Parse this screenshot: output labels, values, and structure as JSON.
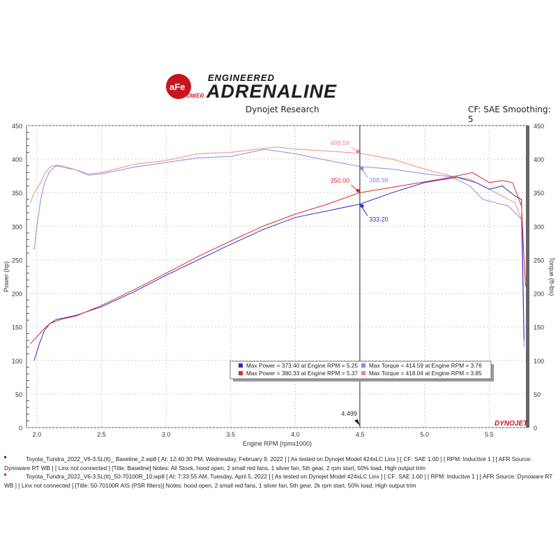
{
  "header": {
    "logo_brand": "aFe POWER",
    "logo_tagline_top": "ENGINEERED",
    "logo_tagline_main": "ADRENALINE",
    "title": "Dynojet Research",
    "settings": "CF: SAE Smoothing: 5"
  },
  "chart_data": {
    "type": "line",
    "title": "Dynojet Research",
    "xlabel": "Engine RPM (rpmx1000)",
    "ylabel": "Power (hp)",
    "y2label": "Torque (ft-lbs)",
    "xlim": [
      1.92,
      5.8
    ],
    "ylim": [
      0,
      450
    ],
    "y2lim": [
      0,
      450
    ],
    "x_ticks": [
      "2.0",
      "2.5",
      "3.0",
      "3.5",
      "4.0",
      "4.5",
      "5.0",
      "5.5"
    ],
    "y_ticks": [
      "0",
      "50",
      "100",
      "150",
      "200",
      "250",
      "300",
      "350",
      "400",
      "450"
    ],
    "grid": true,
    "cursor": {
      "x": 4.499,
      "label": "4.499"
    },
    "colors": {
      "baseline_power": "#2a2acc",
      "baseline_torque": "#8a8ae6",
      "ais_power": "#e02828",
      "ais_torque": "#ec8a8a"
    },
    "series": [
      {
        "key": "baseline_power",
        "axis": "left",
        "x": [
          1.98,
          2.02,
          2.06,
          2.1,
          2.15,
          2.2,
          2.3,
          2.5,
          2.75,
          3.0,
          3.25,
          3.5,
          3.75,
          4.0,
          4.25,
          4.5,
          4.75,
          5.0,
          5.25,
          5.4,
          5.5,
          5.6,
          5.7,
          5.75,
          5.77
        ],
        "y": [
          100,
          125,
          145,
          155,
          161,
          163,
          167,
          180,
          202,
          227,
          250,
          273,
          295,
          313,
          323,
          333,
          350,
          365,
          373,
          365,
          355,
          360,
          345,
          340,
          130
        ]
      },
      {
        "key": "baseline_torque",
        "axis": "right",
        "x": [
          1.98,
          2.0,
          2.03,
          2.06,
          2.1,
          2.15,
          2.2,
          2.3,
          2.4,
          2.5,
          2.75,
          3.0,
          3.25,
          3.5,
          3.76,
          4.0,
          4.25,
          4.5,
          4.75,
          5.0,
          5.2,
          5.35,
          5.45,
          5.55,
          5.65,
          5.75,
          5.77
        ],
        "y": [
          265,
          300,
          340,
          365,
          382,
          390,
          388,
          384,
          376,
          378,
          388,
          395,
          402,
          404,
          414.59,
          408,
          398,
          388.98,
          385,
          378,
          374,
          360,
          340,
          335,
          330,
          310,
          120
        ]
      },
      {
        "key": "ais_power",
        "axis": "left",
        "x": [
          1.95,
          2.0,
          2.05,
          2.1,
          2.2,
          2.3,
          2.5,
          2.75,
          3.0,
          3.25,
          3.5,
          3.75,
          4.0,
          4.25,
          4.5,
          4.75,
          5.0,
          5.2,
          5.37,
          5.5,
          5.6,
          5.68,
          5.75,
          5.78
        ],
        "y": [
          125,
          135,
          146,
          155,
          162,
          166,
          182,
          205,
          230,
          255,
          278,
          300,
          318,
          333,
          350,
          358,
          366,
          373,
          380,
          365,
          368,
          365,
          330,
          210
        ]
      },
      {
        "key": "ais_torque",
        "axis": "right",
        "x": [
          1.95,
          1.98,
          2.02,
          2.06,
          2.1,
          2.15,
          2.2,
          2.3,
          2.4,
          2.5,
          2.75,
          3.0,
          3.25,
          3.5,
          3.85,
          4.0,
          4.25,
          4.5,
          4.75,
          5.0,
          5.2,
          5.35,
          5.5,
          5.6,
          5.7,
          5.75,
          5.78
        ],
        "y": [
          335,
          350,
          362,
          378,
          388,
          391,
          390,
          384,
          378,
          380,
          392,
          398,
          408,
          410,
          418.04,
          415,
          412,
          408.59,
          400,
          385,
          375,
          370,
          355,
          345,
          335,
          310,
          220
        ]
      }
    ],
    "annotations": [
      {
        "series": "ais_torque",
        "x": 4.5,
        "y": 408.59,
        "label": "408.59"
      },
      {
        "series": "baseline_torque",
        "x": 4.5,
        "y": 388.98,
        "label": "388.98"
      },
      {
        "series": "ais_power",
        "x": 4.5,
        "y": 350.0,
        "label": "350.00"
      },
      {
        "series": "baseline_power",
        "x": 4.5,
        "y": 333.2,
        "label": "333.20"
      }
    ],
    "legend": {
      "placement": "bottom-center",
      "entries": [
        {
          "series": "baseline_power",
          "text": "Max Power = 373.40 at Engine RPM = 5.25"
        },
        {
          "series": "baseline_torque",
          "text": "Max Torque = 414.59 at Engine RPM = 3.76"
        },
        {
          "series": "ais_power",
          "text": "Max Power = 380.33 at Engine RPM = 5.37"
        },
        {
          "series": "ais_torque",
          "text": "Max Torque = 418.04 at Engine RPM = 3.85"
        }
      ]
    },
    "watermark": "DYNOJET"
  },
  "notes": [
    {
      "color": "#2a2acc",
      "text": "Toyota_Tundra_2022_V6-3.5L(tt)_ Baseline_2.wp8 [ At: 12:40:30 PM, Wednesday, February 9, 2022 ] [ As tested on Dynojet Model 424xLC Linx ] [ CF: SAE 1.00 ] [ RPM: Inductive 1 ] [ AFR Source: Dynoware RT WB ] [ Linx not connected ] [Title: Baseline]  Notes: All Stock, hood open, 2 small red fans, 1 silver fan, 5th gear, 2 rpm start, 50% load, High output trim"
    },
    {
      "color": "#e02828",
      "text": "Toyota_Tundra_2022_V6-3.5L(tt)_50-70100R_10.wp8 [ At: 7:33:55 AM, Tuesday, April 5, 2022 ] [ As tested on Dynojet Model 424xLC Linx ] [ CF: SAE 1.00 ] [ RPM: Inductive 1 ] [ AFR Source: Dynoware RT WB ] [ Linx not connected ] [Title: 50-70100R AIS (PSR filters)]  Notes: hood open, 2 small red fans, 1 silver fan, 5th gear, 2k rpm start, 50% load, High output trim"
    }
  ]
}
